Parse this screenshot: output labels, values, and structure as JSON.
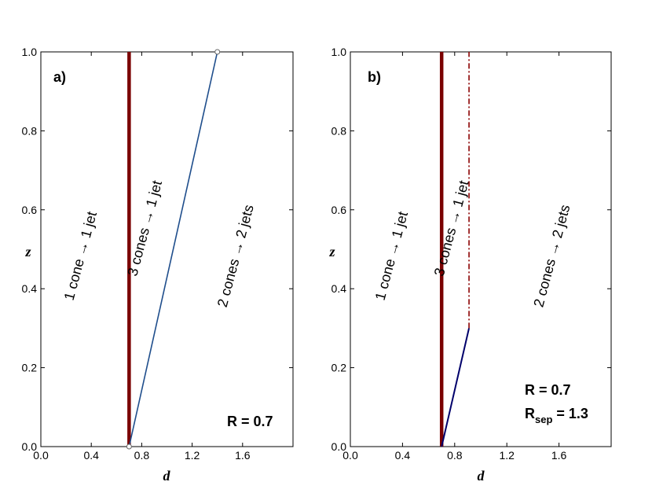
{
  "chart_data": [
    {
      "type": "line",
      "panel_label": "a)",
      "xlabel": "d",
      "ylabel": "z",
      "xlim": [
        0,
        2.0
      ],
      "ylim": [
        0,
        1.0
      ],
      "xticks": [
        "0.0",
        "0.4",
        "0.8",
        "1.2",
        "1.6"
      ],
      "yticks": [
        "0.0",
        "0.2",
        "0.4",
        "0.6",
        "0.8",
        "1.0"
      ],
      "series": [
        {
          "points": [
            [
              0.7,
              0.0
            ],
            [
              0.7,
              1.0
            ]
          ],
          "color": "#7a0000",
          "style": "thick-solid"
        },
        {
          "points": [
            [
              0.7,
              0.0
            ],
            [
              1.4,
              1.0
            ]
          ],
          "color": "#1f4e8c",
          "style": "thin-solid",
          "endpoint_markers": true
        }
      ],
      "regions": [
        {
          "text": "1 cone → 1 jet",
          "x": 0.35,
          "y": 0.48
        },
        {
          "text": "3 cones → 1 jet",
          "x": 0.86,
          "y": 0.55
        },
        {
          "text": "2 cones → 2 jets",
          "x": 1.58,
          "y": 0.48
        }
      ],
      "annotations": [
        {
          "text": "R = 0.7"
        }
      ]
    },
    {
      "type": "line",
      "panel_label": "b)",
      "xlabel": "d",
      "ylabel": "z",
      "xlim": [
        0,
        2.0
      ],
      "ylim": [
        0,
        1.0
      ],
      "xticks": [
        "0.0",
        "0.4",
        "0.8",
        "1.2",
        "1.6"
      ],
      "yticks": [
        "0.0",
        "0.2",
        "0.4",
        "0.6",
        "0.8",
        "1.0"
      ],
      "series": [
        {
          "points": [
            [
              0.7,
              0.0
            ],
            [
              0.7,
              1.0
            ]
          ],
          "color": "#7a0000",
          "style": "thick-solid"
        },
        {
          "points": [
            [
              0.7,
              0.0
            ],
            [
              0.91,
              0.3
            ]
          ],
          "color": "#00006b",
          "style": "solid"
        },
        {
          "points": [
            [
              0.91,
              0.3
            ],
            [
              0.91,
              1.0
            ]
          ],
          "color": "#8b0000",
          "style": "dash-dot"
        }
      ],
      "regions": [
        {
          "text": "1 cone → 1 jet",
          "x": 0.35,
          "y": 0.48
        },
        {
          "text": "3 cones → 1 jet",
          "x": 0.81,
          "y": 0.55
        },
        {
          "text": "2 cones → 2 jets",
          "x": 1.58,
          "y": 0.48
        }
      ],
      "annotations": [
        {
          "text": "R = 0.7"
        },
        {
          "main": "R",
          "sub": "sep",
          "rest": " = 1.3"
        }
      ]
    }
  ]
}
